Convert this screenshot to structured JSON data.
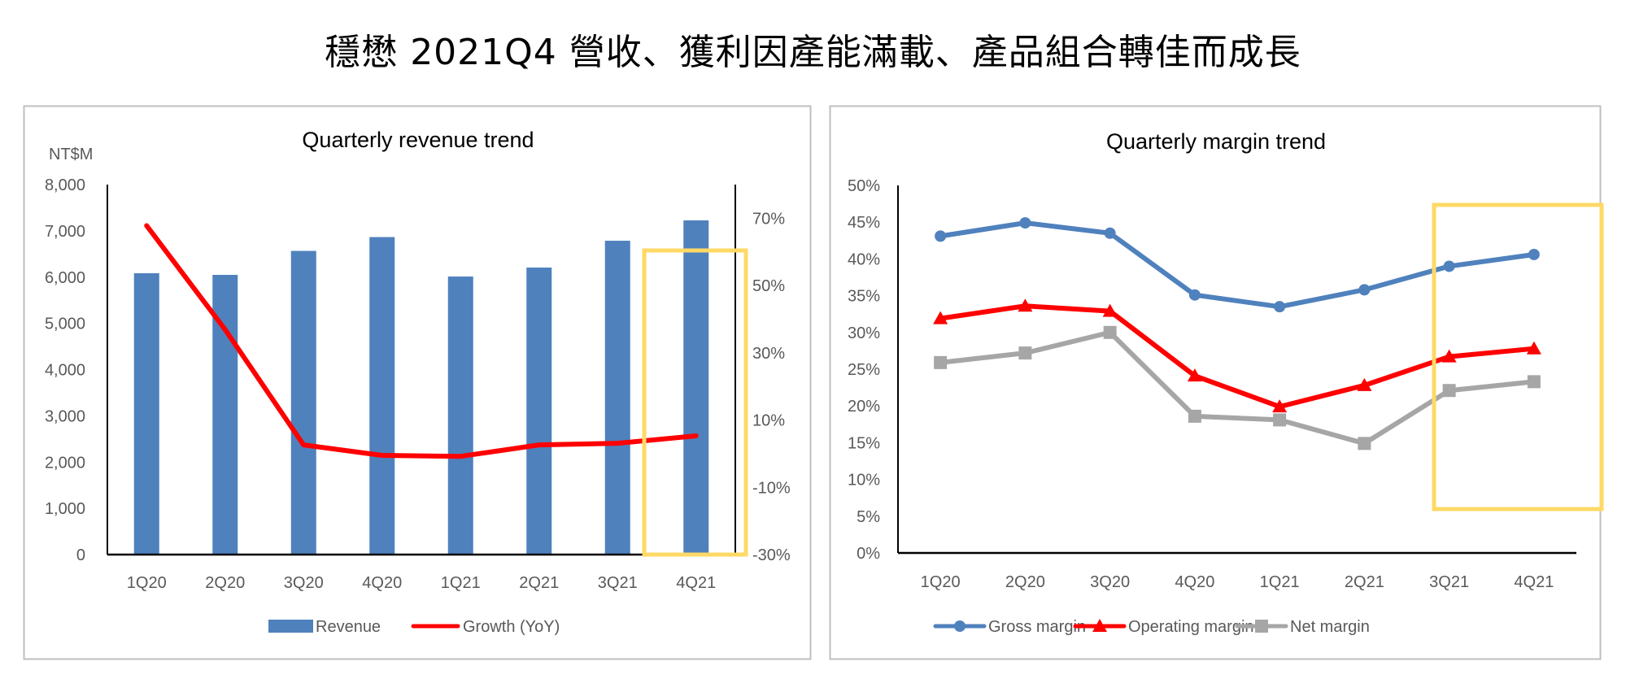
{
  "page": {
    "title": "穩懋 2021Q4 營收、獲利因產能滿載、產品組合轉佳而成長"
  },
  "colors": {
    "revenue_bar": "#4f81bd",
    "growth_line": "#ff0000",
    "gross_margin": "#4f81bd",
    "operating_margin": "#ff0000",
    "net_margin": "#a6a6a6",
    "highlight_box": "#ffd966",
    "panel_border": "#bfbfbf",
    "axis_text": "#595959"
  },
  "chart_data": [
    {
      "id": "revenue",
      "type": "bar",
      "title": "Quarterly revenue trend",
      "ylabel": "NT$M",
      "xlabel": "",
      "categories": [
        "1Q20",
        "2Q20",
        "3Q20",
        "4Q20",
        "1Q21",
        "2Q21",
        "3Q21",
        "4Q21"
      ],
      "series": [
        {
          "name": "Revenue",
          "type": "bar",
          "axis": "left",
          "values": [
            6083,
            6048,
            6566,
            6865,
            6012,
            6206,
            6786,
            7226
          ]
        },
        {
          "name": "Growth (YoY)",
          "type": "line",
          "axis": "right",
          "values": [
            67.8,
            36.9,
            2.6,
            -0.5,
            -0.8,
            2.6,
            3.1,
            5.3
          ]
        }
      ],
      "ylim": [
        0,
        8000
      ],
      "yticks": [
        0,
        1000,
        2000,
        3000,
        4000,
        5000,
        6000,
        7000,
        8000
      ],
      "ytick_labels": [
        "0",
        "1,000",
        "2,000",
        "3,000",
        "4,000",
        "5,000",
        "6,000",
        "7,000",
        "8,000"
      ],
      "y2lim": [
        -30,
        80
      ],
      "y2ticks": [
        -30,
        -10,
        10,
        30,
        50,
        70
      ],
      "y2tick_labels": [
        "-30%",
        "-10%",
        "10%",
        "30%",
        "50%",
        "70%"
      ],
      "grid": false,
      "legend": "bottom",
      "highlight_category": "4Q21"
    },
    {
      "id": "margin",
      "type": "line",
      "title": "Quarterly margin trend",
      "xlabel": "",
      "ylabel": "",
      "categories": [
        "1Q20",
        "2Q20",
        "3Q20",
        "4Q20",
        "1Q21",
        "2Q21",
        "3Q21",
        "4Q21"
      ],
      "series": [
        {
          "name": "Gross margin",
          "marker": "circle",
          "values": [
            43.1,
            44.9,
            43.5,
            35.1,
            33.5,
            35.8,
            39.0,
            40.6
          ]
        },
        {
          "name": "Operating margin",
          "marker": "triangle",
          "values": [
            31.9,
            33.6,
            32.9,
            24.1,
            19.9,
            22.8,
            26.7,
            27.8
          ]
        },
        {
          "name": "Net margin",
          "marker": "square",
          "values": [
            25.9,
            27.2,
            30.0,
            18.6,
            18.1,
            14.9,
            22.1,
            23.3
          ]
        }
      ],
      "ylim": [
        0,
        50
      ],
      "yticks": [
        0,
        5,
        10,
        15,
        20,
        25,
        30,
        35,
        40,
        45,
        50
      ],
      "ytick_labels": [
        "0%",
        "5%",
        "10%",
        "15%",
        "20%",
        "25%",
        "30%",
        "35%",
        "40%",
        "45%",
        "50%"
      ],
      "grid": false,
      "legend": "bottom",
      "highlight_categories": [
        "3Q21",
        "4Q21"
      ]
    }
  ]
}
